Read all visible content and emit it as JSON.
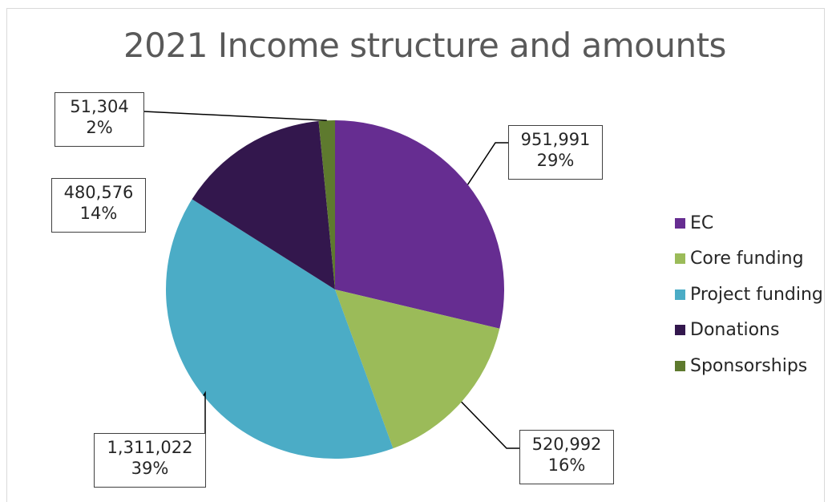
{
  "chart_data": {
    "type": "pie",
    "title": "2021 Income structure and amounts",
    "slices": [
      {
        "name": "EC",
        "value": 951991,
        "value_label": "951,991",
        "percent_label": "29%",
        "color": "#662d91"
      },
      {
        "name": "Core funding",
        "value": 520992,
        "value_label": "520,992",
        "percent_label": "16%",
        "color": "#9bbb59"
      },
      {
        "name": "Project funding",
        "value": 1311022,
        "value_label": "1,311,022",
        "percent_label": "39%",
        "color": "#4bacc6"
      },
      {
        "name": "Donations",
        "value": 480576,
        "value_label": "480,576",
        "percent_label": "14%",
        "color": "#33174d"
      },
      {
        "name": "Sponsorships",
        "value": 51304,
        "value_label": "51,304",
        "percent_label": "2%",
        "color": "#5e7a2e"
      }
    ],
    "legend_position": "right"
  }
}
